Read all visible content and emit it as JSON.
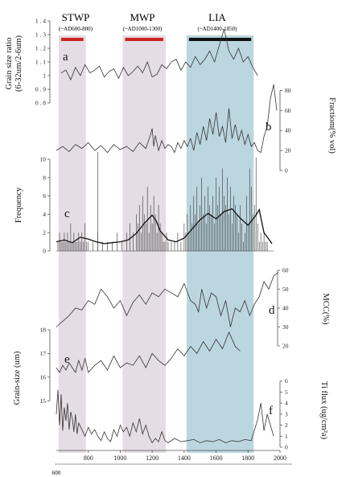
{
  "periods": [
    {
      "id": "stwp",
      "label": "STWP",
      "range": "(~AD600-800)",
      "start": 600,
      "end": 800,
      "shade": "#e4dde3",
      "bar": "#cc2222"
    },
    {
      "id": "mwp",
      "label": "MWP",
      "range": "(~AD1000-1300)",
      "start": 1000,
      "end": 1300,
      "shade": "#e4dde3",
      "bar": "#cc2222"
    },
    {
      "id": "lia",
      "label": "LIA",
      "range": "(~AD1400-1850)",
      "start": 1400,
      "end": 1850,
      "shade": "#bcd6df",
      "bar": "#111111"
    }
  ],
  "x_axis": {
    "ticks": [
      800,
      1000,
      1200,
      1400,
      1600,
      1800,
      2000
    ],
    "origin_label": "600",
    "range": [
      600,
      2000
    ]
  },
  "chart_data": [
    {
      "id": "a",
      "panel_letter": "a",
      "type": "line",
      "ylabel": "Grain size ratio\n(6-32um/2-6um)",
      "ylim": [
        0.8,
        1.4
      ],
      "ticks": [
        0.8,
        0.9,
        1.0,
        1.1,
        1.2,
        1.3,
        1.4
      ],
      "tick_labels": [
        "0 . 8",
        "0 . 9",
        "1",
        "1 . 1",
        "1 . 2",
        "1 . 3",
        "1 . 4"
      ],
      "axis_side": "left",
      "x": [
        630,
        660,
        690,
        720,
        750,
        780,
        810,
        840,
        870,
        900,
        930,
        960,
        990,
        1020,
        1050,
        1080,
        1110,
        1140,
        1170,
        1200,
        1230,
        1260,
        1290,
        1320,
        1350,
        1380,
        1410,
        1440,
        1470,
        1500,
        1530,
        1560,
        1590,
        1620,
        1650,
        1680,
        1710,
        1740,
        1770,
        1800,
        1830,
        1860
      ],
      "y": [
        1.02,
        1.04,
        0.97,
        1.06,
        1.0,
        1.08,
        1.02,
        1.04,
        1.07,
        0.99,
        1.03,
        1.05,
        0.98,
        1.06,
        1.0,
        1.03,
        1.07,
        1.02,
        1.1,
        0.99,
        1.01,
        1.08,
        1.05,
        1.1,
        1.12,
        1.04,
        1.1,
        1.06,
        1.14,
        1.08,
        1.12,
        1.18,
        1.1,
        1.22,
        1.34,
        1.18,
        1.12,
        1.2,
        1.1,
        1.14,
        1.06,
        1.0
      ]
    },
    {
      "id": "b",
      "panel_letter": "b",
      "type": "line",
      "ylabel": "Fractiom(% vol)",
      "ylim": [
        0,
        90
      ],
      "ticks": [
        0,
        20,
        40,
        60,
        80
      ],
      "tick_labels": [
        "0",
        "20",
        "40",
        "60",
        "80"
      ],
      "axis_side": "right",
      "x": [
        600,
        640,
        680,
        720,
        760,
        800,
        840,
        880,
        920,
        960,
        1000,
        1040,
        1080,
        1120,
        1160,
        1190,
        1200,
        1210,
        1220,
        1240,
        1260,
        1280,
        1300,
        1320,
        1340,
        1360,
        1380,
        1400,
        1420,
        1440,
        1460,
        1480,
        1500,
        1520,
        1540,
        1560,
        1580,
        1600,
        1620,
        1640,
        1660,
        1680,
        1700,
        1720,
        1740,
        1760,
        1780,
        1800,
        1820,
        1840,
        1860,
        1880,
        1900,
        1920,
        1940,
        1960,
        1980
      ],
      "y": [
        20,
        24,
        19,
        26,
        22,
        28,
        20,
        25,
        18,
        26,
        21,
        24,
        19,
        28,
        22,
        36,
        42,
        24,
        35,
        20,
        30,
        22,
        26,
        24,
        18,
        28,
        22,
        30,
        24,
        32,
        20,
        38,
        26,
        44,
        30,
        52,
        36,
        58,
        34,
        44,
        28,
        62,
        32,
        46,
        30,
        40,
        26,
        36,
        24,
        28,
        20,
        18,
        34,
        44,
        72,
        86,
        60
      ]
    },
    {
      "id": "c",
      "panel_letter": "c",
      "type": "bar+line",
      "ylabel": "Frequency",
      "ylim": [
        0,
        10
      ],
      "ticks": [
        0,
        2,
        4,
        6,
        8,
        10
      ],
      "tick_labels": [
        "0",
        "2",
        "4",
        "6",
        "8",
        "10"
      ],
      "axis_side": "left",
      "bars": {
        "x": [
          610,
          620,
          630,
          640,
          650,
          660,
          670,
          680,
          690,
          700,
          710,
          720,
          730,
          740,
          750,
          760,
          770,
          780,
          790,
          800,
          830,
          860,
          890,
          920,
          950,
          980,
          1010,
          1040,
          1060,
          1080,
          1100,
          1110,
          1120,
          1130,
          1140,
          1150,
          1160,
          1170,
          1180,
          1190,
          1200,
          1210,
          1220,
          1230,
          1240,
          1250,
          1260,
          1270,
          1280,
          1290,
          1300,
          1320,
          1340,
          1360,
          1380,
          1400,
          1410,
          1420,
          1430,
          1440,
          1450,
          1460,
          1470,
          1480,
          1490,
          1500,
          1510,
          1520,
          1530,
          1540,
          1550,
          1560,
          1570,
          1580,
          1590,
          1600,
          1610,
          1620,
          1630,
          1640,
          1650,
          1660,
          1670,
          1680,
          1690,
          1700,
          1710,
          1720,
          1730,
          1740,
          1750,
          1760,
          1770,
          1780,
          1790,
          1800,
          1810,
          1820,
          1830,
          1840,
          1850,
          1860,
          1870,
          1880,
          1890,
          1900,
          1910,
          1920
        ],
        "values": [
          1,
          2,
          1,
          1,
          2,
          1,
          2,
          1,
          3,
          1,
          2,
          1,
          1,
          2,
          1,
          2,
          1,
          3,
          1,
          1,
          1,
          2,
          1,
          1,
          1,
          2,
          1,
          2,
          3,
          2,
          4,
          3,
          5,
          2,
          6,
          4,
          3,
          7,
          2,
          5,
          3,
          6,
          4,
          2,
          5,
          3,
          2,
          1,
          1,
          2,
          1,
          1,
          1,
          2,
          1,
          3,
          2,
          4,
          2,
          5,
          3,
          6,
          4,
          7,
          3,
          5,
          8,
          4,
          6,
          3,
          7,
          5,
          4,
          6,
          3,
          8,
          5,
          7,
          4,
          9,
          6,
          5,
          8,
          4,
          7,
          3,
          6,
          5,
          4,
          2,
          5,
          3,
          1,
          2,
          6,
          3,
          9,
          7,
          4,
          5,
          2,
          3,
          1,
          2,
          1,
          2,
          1,
          1
        ]
      },
      "smooth": {
        "x": [
          600,
          650,
          700,
          750,
          800,
          850,
          900,
          950,
          1000,
          1050,
          1100,
          1150,
          1200,
          1225,
          1250,
          1300,
          1350,
          1400,
          1450,
          1500,
          1550,
          1600,
          1650,
          1700,
          1750,
          1800,
          1850,
          1870,
          1900,
          1950
        ],
        "y": [
          1.0,
          1.2,
          0.9,
          1.5,
          1.3,
          1.0,
          0.8,
          0.9,
          1.0,
          1.2,
          1.9,
          3.0,
          3.9,
          3.3,
          2.2,
          1.2,
          1.0,
          1.4,
          2.4,
          3.4,
          4.1,
          3.5,
          4.3,
          4.6,
          3.6,
          2.8,
          3.9,
          4.5,
          2.0,
          0.8
        ]
      },
      "extra_ticks": [
        {
          "x": 860,
          "value": 10.8
        },
        {
          "x": 1850,
          "value": 10.2
        }
      ]
    },
    {
      "id": "d",
      "panel_letter": "d",
      "type": "line",
      "ylabel": "MCC(%)",
      "ylim": [
        20,
        60
      ],
      "ticks": [
        20,
        30,
        40,
        50,
        60
      ],
      "tick_labels": [
        "20",
        "30",
        "40",
        "50",
        "60"
      ],
      "axis_side": "right",
      "x": [
        600,
        640,
        680,
        720,
        760,
        800,
        840,
        880,
        920,
        960,
        1000,
        1040,
        1080,
        1120,
        1160,
        1200,
        1240,
        1280,
        1320,
        1360,
        1400,
        1440,
        1470,
        1490,
        1510,
        1540,
        1570,
        1600,
        1630,
        1660,
        1690,
        1720,
        1750,
        1780,
        1810,
        1840,
        1870,
        1900,
        1930,
        1960,
        1990
      ],
      "y": [
        30,
        33,
        36,
        40,
        39,
        44,
        42,
        50,
        46,
        40,
        44,
        36,
        43,
        47,
        42,
        48,
        46,
        50,
        48,
        46,
        53,
        44,
        42,
        38,
        50,
        40,
        48,
        46,
        36,
        44,
        30,
        40,
        38,
        44,
        36,
        42,
        46,
        54,
        50,
        57,
        59
      ]
    },
    {
      "id": "e",
      "panel_letter": "e",
      "type": "line",
      "ylabel": "Grain-size (um)",
      "ylim": [
        14.4,
        18.0
      ],
      "ticks": [
        15,
        16,
        17,
        18
      ],
      "tick_labels": [
        "15",
        "16",
        "17",
        "18"
      ],
      "axis_side": "left",
      "x": [
        600,
        620,
        640,
        660,
        680,
        700,
        720,
        740,
        760,
        780,
        800,
        840,
        880,
        920,
        960,
        1000,
        1040,
        1080,
        1120,
        1160,
        1200,
        1240,
        1280,
        1320,
        1360,
        1400,
        1440,
        1480,
        1520,
        1560,
        1600,
        1640,
        1680,
        1720,
        1750
      ],
      "y": [
        16.4,
        16.2,
        16.5,
        16.3,
        16.6,
        16.4,
        16.2,
        16.7,
        16.3,
        16.8,
        16.2,
        16.5,
        16.7,
        16.3,
        16.9,
        16.4,
        16.6,
        16.5,
        16.9,
        16.4,
        17.0,
        16.7,
        16.5,
        16.8,
        17.2,
        16.9,
        17.3,
        17.0,
        17.5,
        17.1,
        17.6,
        17.2,
        17.9,
        17.3,
        17.1
      ]
    },
    {
      "id": "f",
      "panel_letter": "f",
      "type": "line",
      "ylabel": "Ti flux (ug/cm²a)",
      "ylim": [
        0,
        7
      ],
      "ticks": [
        0,
        1,
        2,
        3,
        4,
        5,
        6
      ],
      "tick_labels": [
        "0",
        "1",
        "2",
        "3",
        "4",
        "5",
        "6"
      ],
      "axis_side": "right",
      "x": [
        600,
        610,
        620,
        630,
        640,
        650,
        660,
        670,
        680,
        690,
        700,
        710,
        720,
        730,
        740,
        760,
        780,
        800,
        820,
        840,
        860,
        880,
        900,
        920,
        940,
        960,
        980,
        1000,
        1020,
        1040,
        1060,
        1080,
        1100,
        1120,
        1140,
        1160,
        1180,
        1200,
        1220,
        1240,
        1260,
        1280,
        1300,
        1340,
        1380,
        1420,
        1460,
        1500,
        1540,
        1580,
        1620,
        1660,
        1700,
        1740,
        1780,
        1820,
        1860,
        1880,
        1900,
        1920,
        1940,
        1960
      ],
      "y": [
        3.0,
        5.2,
        2.0,
        4.8,
        1.5,
        3.6,
        2.4,
        4.0,
        1.6,
        3.2,
        2.6,
        1.4,
        3.0,
        1.2,
        2.2,
        1.6,
        1.0,
        1.8,
        1.2,
        1.6,
        1.0,
        0.6,
        1.4,
        0.8,
        0.5,
        1.6,
        1.0,
        2.0,
        1.4,
        1.8,
        1.0,
        2.2,
        1.4,
        2.6,
        1.2,
        2.0,
        1.0,
        0.4,
        0.8,
        0.5,
        1.4,
        0.6,
        0.4,
        0.8,
        0.5,
        0.6,
        0.7,
        0.4,
        0.6,
        0.5,
        0.7,
        0.4,
        0.6,
        0.5,
        0.7,
        0.6,
        2.5,
        4.0,
        1.5,
        3.0,
        2.0,
        1.0
      ]
    }
  ]
}
